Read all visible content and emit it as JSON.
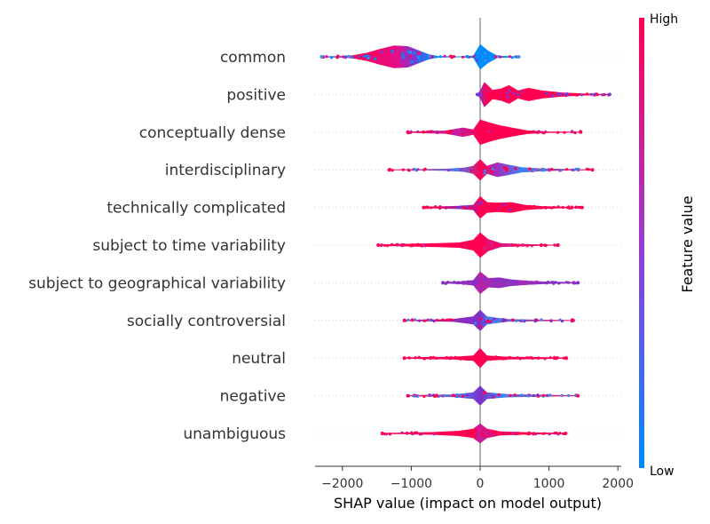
{
  "chart_data": {
    "type": "violin",
    "title": "",
    "xlabel": "SHAP value (impact on model output)",
    "ylabel": "",
    "xlim": [
      -2400,
      2050
    ],
    "xticks": [
      -2000,
      -1000,
      0,
      1000,
      2000
    ],
    "xtick_labels": [
      "−2000",
      "−1000",
      "0",
      "1000",
      "2000"
    ],
    "colorbar": {
      "title": "Feature value",
      "high_label": "High",
      "low_label": "Low",
      "high_color": "#ff0051",
      "low_color": "#008bfb"
    },
    "series": [
      {
        "name": "common",
        "min": -2300,
        "max": 560,
        "profile": [
          [
            -2300,
            0.03
          ],
          [
            -2200,
            0.05
          ],
          [
            -2000,
            0.06
          ],
          [
            -1850,
            0.12
          ],
          [
            -1650,
            0.3
          ],
          [
            -1450,
            0.6
          ],
          [
            -1250,
            0.85
          ],
          [
            -1050,
            0.8
          ],
          [
            -900,
            0.5
          ],
          [
            -750,
            0.2
          ],
          [
            -600,
            0.05
          ],
          [
            -300,
            0.03
          ],
          [
            -100,
            0.08
          ],
          [
            0,
            0.95
          ],
          [
            120,
            0.45
          ],
          [
            250,
            0.08
          ],
          [
            560,
            0.03
          ]
        ],
        "color_stops": [
          [
            -2300,
            "#4090f0"
          ],
          [
            -1800,
            "#ff0051"
          ],
          [
            -1200,
            "#e0108a"
          ],
          [
            -950,
            "#7a38d6"
          ],
          [
            -700,
            "#008bfb"
          ],
          [
            560,
            "#008bfb"
          ]
        ]
      },
      {
        "name": "positive",
        "min": -40,
        "max": 1880,
        "profile": [
          [
            -40,
            0.05
          ],
          [
            0,
            0.3
          ],
          [
            60,
            0.95
          ],
          [
            180,
            0.35
          ],
          [
            300,
            0.45
          ],
          [
            420,
            0.7
          ],
          [
            550,
            0.3
          ],
          [
            700,
            0.5
          ],
          [
            900,
            0.3
          ],
          [
            1200,
            0.15
          ],
          [
            1500,
            0.08
          ],
          [
            1880,
            0.03
          ]
        ],
        "color_stops": [
          [
            -40,
            "#7a38d6"
          ],
          [
            100,
            "#ff0051"
          ],
          [
            1880,
            "#ff0051"
          ]
        ]
      },
      {
        "name": "conceptually dense",
        "min": -1050,
        "max": 1460,
        "profile": [
          [
            -1050,
            0.04
          ],
          [
            -800,
            0.08
          ],
          [
            -500,
            0.12
          ],
          [
            -250,
            0.35
          ],
          [
            -100,
            0.2
          ],
          [
            0,
            0.95
          ],
          [
            150,
            0.7
          ],
          [
            300,
            0.5
          ],
          [
            500,
            0.3
          ],
          [
            700,
            0.12
          ],
          [
            1000,
            0.05
          ],
          [
            1460,
            0.03
          ]
        ],
        "color_stops": [
          [
            -1050,
            "#ff0051"
          ],
          [
            -300,
            "#c020a0"
          ],
          [
            0,
            "#ff0051"
          ],
          [
            1460,
            "#ff0051"
          ]
        ]
      },
      {
        "name": "interdisciplinary",
        "min": -1320,
        "max": 1630,
        "profile": [
          [
            -1320,
            0.03
          ],
          [
            -800,
            0.05
          ],
          [
            -500,
            0.08
          ],
          [
            -250,
            0.15
          ],
          [
            -100,
            0.3
          ],
          [
            0,
            0.8
          ],
          [
            100,
            0.3
          ],
          [
            250,
            0.55
          ],
          [
            400,
            0.4
          ],
          [
            600,
            0.2
          ],
          [
            900,
            0.1
          ],
          [
            1300,
            0.05
          ],
          [
            1630,
            0.03
          ]
        ],
        "color_stops": [
          [
            -1320,
            "#ff0051"
          ],
          [
            -300,
            "#4080f0"
          ],
          [
            0,
            "#ff0051"
          ],
          [
            250,
            "#a030c0"
          ],
          [
            600,
            "#4080f0"
          ],
          [
            1630,
            "#ff0051"
          ]
        ]
      },
      {
        "name": "technically complicated",
        "min": -820,
        "max": 1480,
        "profile": [
          [
            -820,
            0.04
          ],
          [
            -600,
            0.08
          ],
          [
            -300,
            0.12
          ],
          [
            -100,
            0.2
          ],
          [
            0,
            0.85
          ],
          [
            100,
            0.4
          ],
          [
            250,
            0.35
          ],
          [
            450,
            0.4
          ],
          [
            650,
            0.2
          ],
          [
            900,
            0.1
          ],
          [
            1200,
            0.06
          ],
          [
            1480,
            0.03
          ]
        ],
        "color_stops": [
          [
            -820,
            "#ff0051"
          ],
          [
            -200,
            "#8030c8"
          ],
          [
            0,
            "#ff0051"
          ],
          [
            1480,
            "#ff0051"
          ]
        ]
      },
      {
        "name": "subject to time variability",
        "min": -1480,
        "max": 1130,
        "profile": [
          [
            -1480,
            0.05
          ],
          [
            -1200,
            0.08
          ],
          [
            -900,
            0.12
          ],
          [
            -600,
            0.15
          ],
          [
            -300,
            0.2
          ],
          [
            -100,
            0.4
          ],
          [
            0,
            0.95
          ],
          [
            120,
            0.45
          ],
          [
            300,
            0.15
          ],
          [
            600,
            0.08
          ],
          [
            1130,
            0.03
          ]
        ],
        "color_stops": [
          [
            -1480,
            "#ff0051"
          ],
          [
            -200,
            "#ff0051"
          ],
          [
            0,
            "#ff0051"
          ],
          [
            300,
            "#d0208a"
          ],
          [
            1130,
            "#ff0051"
          ]
        ]
      },
      {
        "name": "subject to geographical variability",
        "min": -540,
        "max": 1420,
        "profile": [
          [
            -540,
            0.05
          ],
          [
            -300,
            0.1
          ],
          [
            -100,
            0.2
          ],
          [
            0,
            0.85
          ],
          [
            120,
            0.35
          ],
          [
            280,
            0.4
          ],
          [
            450,
            0.25
          ],
          [
            700,
            0.15
          ],
          [
            1000,
            0.08
          ],
          [
            1420,
            0.05
          ]
        ],
        "color_stops": [
          [
            -540,
            "#8030c8"
          ],
          [
            -100,
            "#9030c0"
          ],
          [
            0,
            "#c020a0"
          ],
          [
            250,
            "#9030c0"
          ],
          [
            1420,
            "#9030c0"
          ]
        ]
      },
      {
        "name": "socially controversial",
        "min": -1100,
        "max": 1350,
        "profile": [
          [
            -1100,
            0.04
          ],
          [
            -800,
            0.06
          ],
          [
            -400,
            0.1
          ],
          [
            -100,
            0.3
          ],
          [
            0,
            0.8
          ],
          [
            100,
            0.3
          ],
          [
            400,
            0.1
          ],
          [
            800,
            0.06
          ],
          [
            1350,
            0.03
          ]
        ],
        "color_stops": [
          [
            -1100,
            "#ff0051"
          ],
          [
            -150,
            "#8030c8"
          ],
          [
            0,
            "#8030c8"
          ],
          [
            150,
            "#4080f0"
          ],
          [
            1350,
            "#ff0051"
          ]
        ]
      },
      {
        "name": "neutral",
        "min": -1100,
        "max": 1250,
        "profile": [
          [
            -1100,
            0.05
          ],
          [
            -800,
            0.08
          ],
          [
            -400,
            0.1
          ],
          [
            -100,
            0.2
          ],
          [
            0,
            0.75
          ],
          [
            100,
            0.2
          ],
          [
            400,
            0.1
          ],
          [
            800,
            0.08
          ],
          [
            1250,
            0.04
          ]
        ],
        "color_stops": [
          [
            -1100,
            "#ff0051"
          ],
          [
            1250,
            "#ff0051"
          ]
        ]
      },
      {
        "name": "negative",
        "min": -1050,
        "max": 1420,
        "profile": [
          [
            -1050,
            0.03
          ],
          [
            -750,
            0.07
          ],
          [
            -400,
            0.1
          ],
          [
            -100,
            0.25
          ],
          [
            0,
            0.75
          ],
          [
            100,
            0.25
          ],
          [
            400,
            0.12
          ],
          [
            800,
            0.08
          ],
          [
            1420,
            0.03
          ]
        ],
        "color_stops": [
          [
            -1050,
            "#ff0051"
          ],
          [
            -300,
            "#4080f0"
          ],
          [
            0,
            "#8030c8"
          ],
          [
            300,
            "#4080f0"
          ],
          [
            1420,
            "#ff0051"
          ]
        ]
      },
      {
        "name": "unambiguous",
        "min": -1420,
        "max": 1240,
        "profile": [
          [
            -1420,
            0.04
          ],
          [
            -1100,
            0.06
          ],
          [
            -700,
            0.1
          ],
          [
            -300,
            0.2
          ],
          [
            -100,
            0.35
          ],
          [
            0,
            0.75
          ],
          [
            100,
            0.35
          ],
          [
            300,
            0.15
          ],
          [
            700,
            0.08
          ],
          [
            1240,
            0.04
          ]
        ],
        "color_stops": [
          [
            -1420,
            "#ff0051"
          ],
          [
            -100,
            "#ff0051"
          ],
          [
            0,
            "#c020a0"
          ],
          [
            300,
            "#ff0051"
          ],
          [
            1240,
            "#ff0051"
          ]
        ]
      }
    ]
  }
}
